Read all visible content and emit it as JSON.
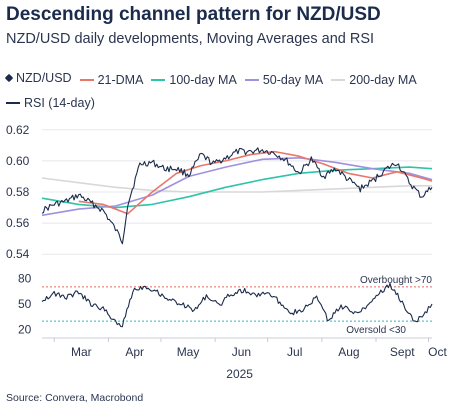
{
  "title": "Descending channel pattern for NZD/USD",
  "subtitle": "NZD/USD daily developments, Moving Averages and RSI",
  "source": "Source: Convera, Macrobond",
  "colors": {
    "price": "#1b2b4b",
    "dma21": "#e8776a",
    "ma100": "#2ec4a9",
    "ma50": "#9f90e0",
    "ma200": "#d8d8d8",
    "rsi": "#1b2b4b",
    "overbought": "#e06b60",
    "oversold": "#2fb7c4"
  },
  "legend": [
    {
      "label": "NZD/USD",
      "color": "#1b2b4b",
      "marker": "diamond"
    },
    {
      "label": "21-DMA",
      "color": "#e8776a"
    },
    {
      "label": "100-day MA",
      "color": "#2ec4a9"
    },
    {
      "label": "50-day MA",
      "color": "#9f90e0"
    },
    {
      "label": "200-day MA",
      "color": "#d8d8d8"
    },
    {
      "label": "RSI (14-day)",
      "color": "#1b2b4b"
    }
  ],
  "chart_data": [
    {
      "type": "line",
      "panel": "price",
      "ylim": [
        0.535,
        0.625
      ],
      "yticks": [
        "0.62",
        "0.60",
        "0.58",
        "0.56",
        "0.54"
      ],
      "ytick_values": [
        0.62,
        0.6,
        0.58,
        0.56,
        0.54
      ],
      "grid": true,
      "series": [
        {
          "name": "NZD/USD",
          "x": [
            "2025-02-22",
            "2025-03-01",
            "2025-03-08",
            "2025-03-15",
            "2025-03-22",
            "2025-03-29",
            "2025-04-05",
            "2025-04-09",
            "2025-04-12",
            "2025-04-19",
            "2025-04-26",
            "2025-05-03",
            "2025-05-10",
            "2025-05-17",
            "2025-05-24",
            "2025-05-31",
            "2025-06-07",
            "2025-06-14",
            "2025-06-21",
            "2025-06-28",
            "2025-07-05",
            "2025-07-12",
            "2025-07-19",
            "2025-07-26",
            "2025-08-02",
            "2025-08-09",
            "2025-08-16",
            "2025-08-23",
            "2025-08-30",
            "2025-09-06",
            "2025-09-13",
            "2025-09-20",
            "2025-09-27",
            "2025-10-03"
          ],
          "values": [
            0.568,
            0.572,
            0.574,
            0.578,
            0.573,
            0.568,
            0.556,
            0.548,
            0.572,
            0.598,
            0.599,
            0.595,
            0.595,
            0.591,
            0.604,
            0.598,
            0.602,
            0.606,
            0.606,
            0.607,
            0.605,
            0.6,
            0.592,
            0.601,
            0.59,
            0.595,
            0.588,
            0.582,
            0.587,
            0.594,
            0.599,
            0.586,
            0.577,
            0.583
          ]
        },
        {
          "name": "21-DMA",
          "x": [
            "2025-03-15",
            "2025-03-29",
            "2025-04-12",
            "2025-04-26",
            "2025-05-10",
            "2025-05-24",
            "2025-06-07",
            "2025-06-21",
            "2025-07-05",
            "2025-07-19",
            "2025-08-02",
            "2025-08-16",
            "2025-08-30",
            "2025-09-13",
            "2025-09-27",
            "2025-10-03"
          ],
          "values": [
            0.574,
            0.572,
            0.566,
            0.58,
            0.592,
            0.597,
            0.6,
            0.604,
            0.606,
            0.603,
            0.598,
            0.592,
            0.589,
            0.593,
            0.589,
            0.587
          ]
        },
        {
          "name": "100-day MA",
          "x": [
            "2025-02-22",
            "2025-03-15",
            "2025-04-05",
            "2025-04-26",
            "2025-05-17",
            "2025-06-07",
            "2025-06-28",
            "2025-07-19",
            "2025-08-09",
            "2025-08-30",
            "2025-09-20",
            "2025-10-03"
          ],
          "values": [
            0.576,
            0.572,
            0.57,
            0.572,
            0.577,
            0.583,
            0.588,
            0.592,
            0.594,
            0.595,
            0.596,
            0.595
          ]
        },
        {
          "name": "50-day MA",
          "x": [
            "2025-02-22",
            "2025-03-15",
            "2025-04-05",
            "2025-04-26",
            "2025-05-17",
            "2025-06-07",
            "2025-06-28",
            "2025-07-19",
            "2025-08-09",
            "2025-08-30",
            "2025-09-20",
            "2025-10-03"
          ],
          "values": [
            0.565,
            0.569,
            0.571,
            0.578,
            0.59,
            0.596,
            0.601,
            0.602,
            0.599,
            0.595,
            0.592,
            0.588
          ]
        },
        {
          "name": "200-day MA",
          "x": [
            "2025-02-22",
            "2025-03-15",
            "2025-04-05",
            "2025-04-26",
            "2025-05-17",
            "2025-06-07",
            "2025-06-28",
            "2025-07-19",
            "2025-08-09",
            "2025-08-30",
            "2025-09-20",
            "2025-10-03"
          ],
          "values": [
            0.589,
            0.586,
            0.583,
            0.581,
            0.58,
            0.58,
            0.58,
            0.581,
            0.582,
            0.583,
            0.584,
            0.584
          ]
        }
      ]
    },
    {
      "type": "line",
      "panel": "rsi",
      "ylim": [
        15,
        85
      ],
      "yticks": [
        "80",
        "50",
        "20"
      ],
      "ytick_values": [
        80,
        50,
        20
      ],
      "thresholds": [
        {
          "label": "Overbought >70",
          "value": 70
        },
        {
          "label": "Oversold <30",
          "value": 30
        }
      ],
      "series": [
        {
          "name": "RSI (14-day)",
          "x": [
            "2025-02-22",
            "2025-03-01",
            "2025-03-08",
            "2025-03-15",
            "2025-03-22",
            "2025-03-29",
            "2025-04-05",
            "2025-04-09",
            "2025-04-15",
            "2025-04-22",
            "2025-04-29",
            "2025-05-06",
            "2025-05-13",
            "2025-05-20",
            "2025-05-27",
            "2025-06-03",
            "2025-06-10",
            "2025-06-17",
            "2025-06-24",
            "2025-07-01",
            "2025-07-08",
            "2025-07-15",
            "2025-07-22",
            "2025-07-29",
            "2025-08-05",
            "2025-08-12",
            "2025-08-19",
            "2025-08-26",
            "2025-09-02",
            "2025-09-09",
            "2025-09-16",
            "2025-09-23",
            "2025-09-30",
            "2025-10-03"
          ],
          "values": [
            55,
            62,
            58,
            64,
            50,
            44,
            30,
            24,
            66,
            71,
            64,
            55,
            50,
            42,
            60,
            48,
            62,
            66,
            60,
            64,
            52,
            40,
            44,
            58,
            30,
            48,
            40,
            46,
            62,
            72,
            52,
            28,
            42,
            50
          ]
        }
      ]
    }
  ],
  "xaxis": {
    "months": [
      "Mar",
      "Apr",
      "May",
      "Jun",
      "Jul",
      "Aug",
      "Sept",
      "Oct"
    ],
    "month_dates": [
      "2025-03-01",
      "2025-04-01",
      "2025-05-01",
      "2025-06-01",
      "2025-07-01",
      "2025-08-01",
      "2025-09-01",
      "2025-10-01"
    ],
    "year": "2025",
    "start": "2025-02-22",
    "end": "2025-10-03"
  }
}
